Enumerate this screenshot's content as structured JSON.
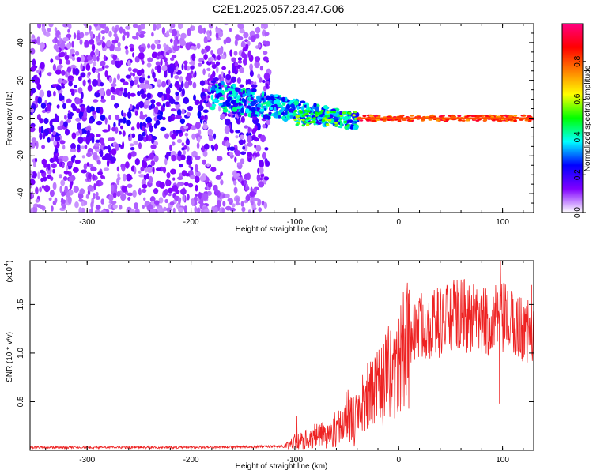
{
  "figure": {
    "title": "C2E1.2025.057.23.47.G06"
  },
  "chart_data": [
    {
      "type": "heatmap",
      "xlabel": "Height of straight line (km)",
      "ylabel": "Frequency (Hz)",
      "xlim": [
        -355,
        130
      ],
      "ylim": [
        -50,
        50
      ],
      "xticks": [
        -300,
        -200,
        -100,
        0,
        100
      ],
      "yticks": [
        -40,
        -20,
        0,
        20,
        40
      ],
      "xtick_labels": [
        "-300",
        "-200",
        "-100",
        "0",
        "100"
      ],
      "ytick_labels": [
        "-40",
        "-20",
        "0",
        "20",
        "40"
      ],
      "colorbar": {
        "label": "Normalized spectral amplitude",
        "range": [
          0,
          1
        ],
        "ticks": [
          0.0,
          0.2,
          0.4,
          0.6,
          0.8
        ],
        "tick_labels": [
          "0.0",
          "0.2",
          "0.4",
          "0.6",
          "0.8"
        ],
        "colormap": [
          "#ffffff",
          "#8000ff",
          "#0000ff",
          "#00ffff",
          "#00ff00",
          "#ffff00",
          "#ff8000",
          "#ff0000",
          "#ff0080"
        ]
      },
      "regions": [
        {
          "x": [
            -355,
            -125
          ],
          "freq_center": 0,
          "freq_spread": 50,
          "amplitude": [
            0.05,
            0.25
          ],
          "description_level": "noise"
        },
        {
          "x": [
            -180,
            -40
          ],
          "freq_center_start": 12,
          "freq_center_end": -2,
          "freq_spread": 8,
          "amplitude": [
            0.2,
            0.45
          ]
        },
        {
          "x": [
            -40,
            130
          ],
          "freq_center": 0,
          "freq_spread": 1.5,
          "amplitude": [
            0.7,
            0.95
          ]
        }
      ]
    },
    {
      "type": "line",
      "xlabel": "Height of straight line (km)",
      "ylabel": "SNR (10 * v/v)",
      "y_multiplier_label": "(x10",
      "y_multiplier_exp": "4",
      "xlim": [
        -355,
        130
      ],
      "ylim": [
        0,
        1.95
      ],
      "xticks": [
        -300,
        -200,
        -100,
        0,
        100
      ],
      "yticks": [
        0.5,
        1.0,
        1.5
      ],
      "xtick_labels": [
        "-300",
        "-200",
        "-100",
        "0",
        "100"
      ],
      "ytick_labels": [
        "0.5",
        "1.0",
        "1.5"
      ],
      "series": [
        {
          "color": "#ee2222",
          "anchors": [
            {
              "x": -355,
              "y": 0.03
            },
            {
              "x": -200,
              "y": 0.03
            },
            {
              "x": -110,
              "y": 0.04
            },
            {
              "x": -100,
              "y": 0.08
            },
            {
              "x": -80,
              "y": 0.14
            },
            {
              "x": -60,
              "y": 0.18
            },
            {
              "x": -45,
              "y": 0.32
            },
            {
              "x": -35,
              "y": 0.5
            },
            {
              "x": -20,
              "y": 0.62
            },
            {
              "x": -10,
              "y": 0.78
            },
            {
              "x": 0,
              "y": 0.85
            },
            {
              "x": 10,
              "y": 1.2
            },
            {
              "x": 20,
              "y": 1.28
            },
            {
              "x": 40,
              "y": 1.32
            },
            {
              "x": 60,
              "y": 1.4
            },
            {
              "x": 80,
              "y": 1.3
            },
            {
              "x": 100,
              "y": 1.35
            },
            {
              "x": 130,
              "y": 1.2
            }
          ],
          "peaks": [
            {
              "x": -98,
              "y": 0.35
            },
            {
              "x": -30,
              "y": 0.9
            },
            {
              "x": 10,
              "y": 1.65
            },
            {
              "x": 40,
              "y": 1.45
            },
            {
              "x": 65,
              "y": 1.78
            },
            {
              "x": 98,
              "y": 1.95
            },
            {
              "x": 97,
              "y": 0.48
            },
            {
              "x": 128,
              "y": 1.7
            }
          ]
        }
      ]
    }
  ]
}
